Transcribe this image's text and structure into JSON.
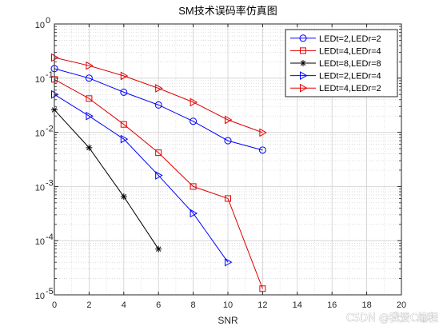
{
  "chart_data": {
    "type": "line",
    "title": "SM技术误码率仿真图",
    "xlabel": "SNR",
    "ylabel": "",
    "xlim": [
      0,
      20
    ],
    "ylim": [
      1e-05,
      1
    ],
    "yscale": "log",
    "grid": true,
    "minor_grid": true,
    "legend_position": "top-right",
    "x_ticks": [
      0,
      2,
      4,
      6,
      8,
      10,
      12,
      14,
      16,
      18,
      20
    ],
    "y_ticks": [
      {
        "value": 1e-05,
        "base": "10",
        "exp": "-5"
      },
      {
        "value": 0.0001,
        "base": "10",
        "exp": "-4"
      },
      {
        "value": 0.001,
        "base": "10",
        "exp": "-3"
      },
      {
        "value": 0.01,
        "base": "10",
        "exp": "-2"
      },
      {
        "value": 0.1,
        "base": "10",
        "exp": "-1"
      },
      {
        "value": 1,
        "base": "10",
        "exp": "0"
      }
    ],
    "series": [
      {
        "name": "LEDt=2,LEDr=2",
        "color": "#0000ff",
        "marker": "circle",
        "x": [
          0,
          2,
          4,
          6,
          8,
          10,
          12
        ],
        "y": [
          0.15,
          0.1,
          0.055,
          0.032,
          0.016,
          0.007,
          0.0047
        ]
      },
      {
        "name": "LEDt=4,LEDr=4",
        "color": "#e00000",
        "marker": "square",
        "x": [
          0,
          2,
          4,
          6,
          8,
          10,
          12
        ],
        "y": [
          0.095,
          0.042,
          0.014,
          0.0042,
          0.001,
          0.0006,
          1.3e-05
        ]
      },
      {
        "name": "LEDt=8,LEDr=8",
        "color": "#000000",
        "marker": "star",
        "x": [
          0,
          2,
          4,
          6
        ],
        "y": [
          0.026,
          0.0052,
          0.00065,
          7e-05
        ]
      },
      {
        "name": "LEDt=2,LEDr=4",
        "color": "#0000ff",
        "marker": "triangle-right",
        "x": [
          0,
          2,
          4,
          6,
          8,
          10
        ],
        "y": [
          0.05,
          0.02,
          0.0075,
          0.0016,
          0.00032,
          4e-05
        ]
      },
      {
        "name": "LEDt=4,LEDr=2",
        "color": "#e00000",
        "marker": "triangle-right",
        "x": [
          0,
          2,
          4,
          6,
          8,
          10,
          12
        ],
        "y": [
          0.24,
          0.17,
          0.11,
          0.065,
          0.036,
          0.017,
          0.0099
        ]
      }
    ]
  },
  "watermark": "CSDN @我爱C编程"
}
